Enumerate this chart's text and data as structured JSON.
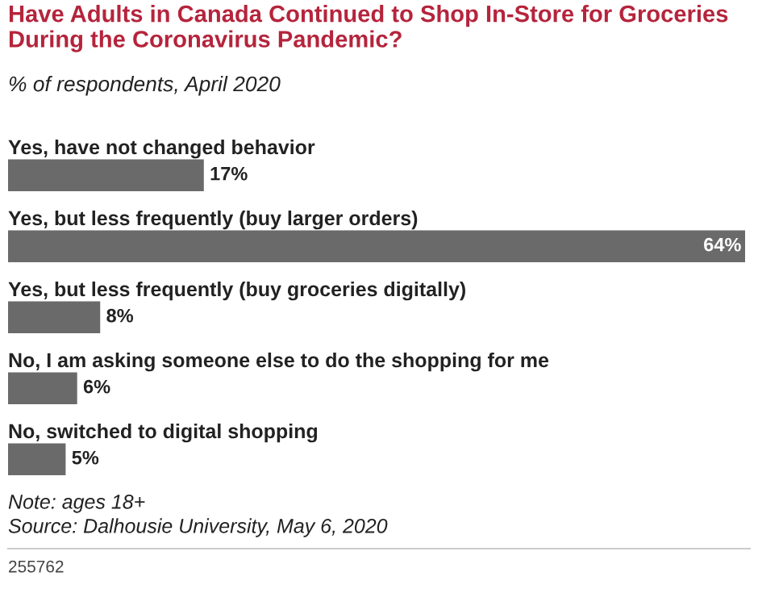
{
  "chart_data": {
    "type": "bar",
    "orientation": "horizontal",
    "title": "Have Adults in Canada Continued to Shop In-Store for Groceries During the Coronavirus Pandemic?",
    "subtitle": "% of respondents, April 2020",
    "categories": [
      "Yes, have not changed behavior",
      "Yes, but less frequently (buy larger orders)",
      "Yes, but less frequently (buy groceries digitally)",
      "No, I am asking someone else to do the shopping for me",
      "No, switched to digital shopping"
    ],
    "values": [
      17,
      64,
      8,
      6,
      5
    ],
    "color": "#6a6a6a",
    "data_labels": true,
    "value_labels": [
      "17%",
      "64%",
      "8%",
      "6%",
      "5%"
    ],
    "annotations": [
      "Note: ages 18+",
      "Source: Dalhousie University, May 6, 2020",
      "255762"
    ]
  }
}
